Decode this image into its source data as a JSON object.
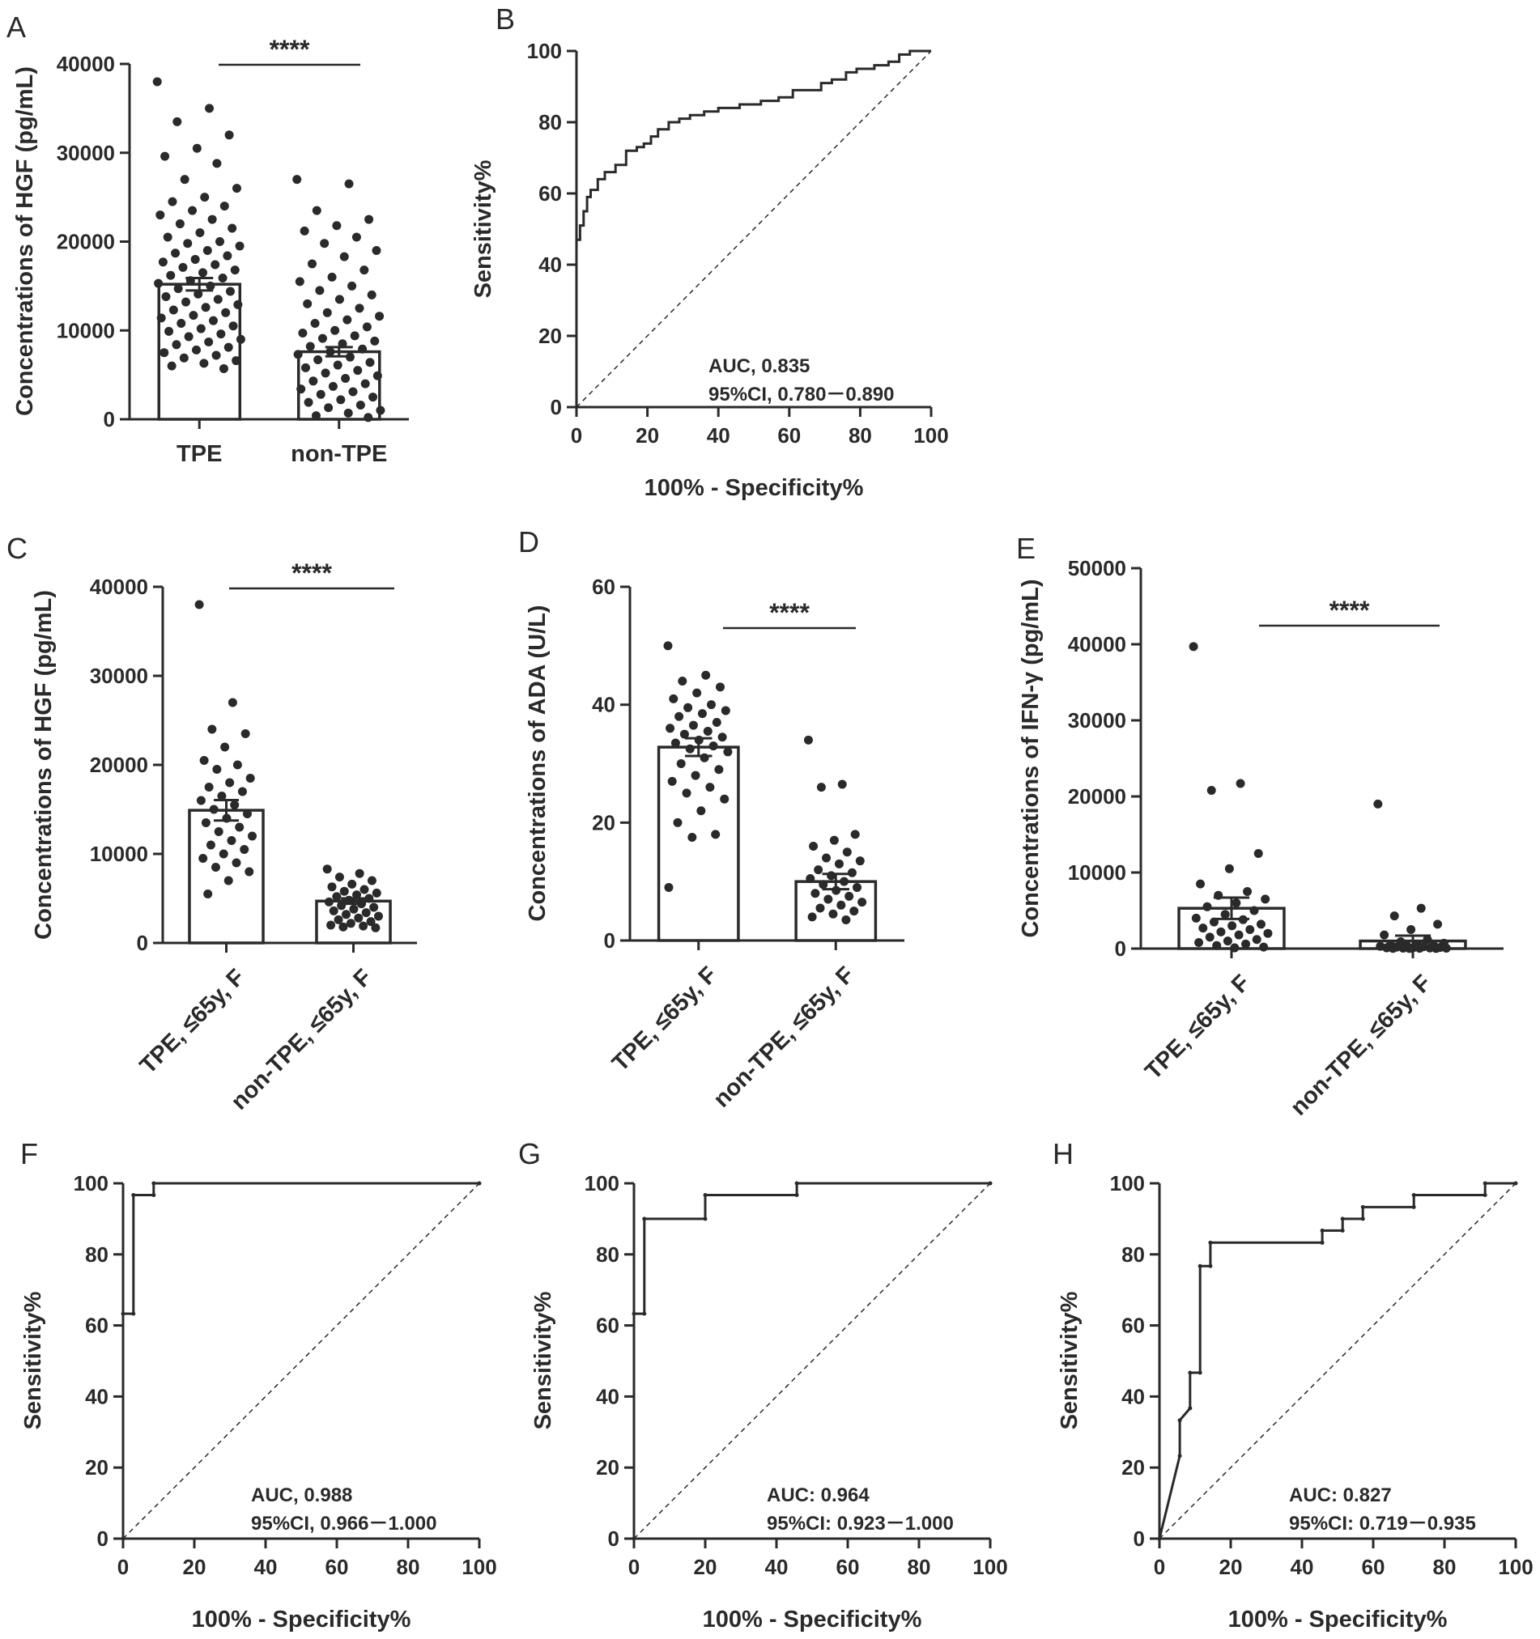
{
  "chart_data": [
    {
      "panel": "A",
      "type": "bar",
      "ylabel": "Concentrations of HGF (pg/mL)",
      "categories": [
        "TPE",
        "non-TPE"
      ],
      "means": [
        15200,
        7600
      ],
      "sem": [
        700,
        520
      ],
      "ylim": [
        0,
        40000
      ],
      "yticks": [
        0,
        10000,
        20000,
        30000,
        40000
      ],
      "significance": "****",
      "points": [
        [
          38000,
          35000,
          33500,
          32000,
          30500,
          29600,
          28800,
          27000,
          26000,
          25000,
          24500,
          24000,
          23500,
          23000,
          22500,
          22000,
          21500,
          21000,
          20500,
          20000,
          19800,
          19500,
          19000,
          18700,
          18400,
          18000,
          17700,
          17400,
          17100,
          16800,
          16500,
          16200,
          15900,
          15600,
          15300,
          15000,
          14700,
          14400,
          14100,
          13800,
          13500,
          13200,
          12900,
          12600,
          12300,
          12000,
          11700,
          11400,
          11100,
          10800,
          10500,
          10200,
          9900,
          9600,
          9300,
          9000,
          8700,
          8400,
          8100,
          7800,
          7500,
          7200,
          6900,
          6600,
          6300,
          6000,
          5700
        ],
        [
          27000,
          26500,
          23500,
          22500,
          21800,
          21200,
          20500,
          19800,
          19000,
          18300,
          17500,
          16800,
          16000,
          15500,
          15000,
          14500,
          14000,
          13500,
          13000,
          12500,
          12000,
          11600,
          11200,
          10800,
          10400,
          10000,
          9700,
          9400,
          9100,
          8800,
          8500,
          8200,
          7900,
          7600,
          7300,
          7000,
          6700,
          6400,
          6100,
          5800,
          5500,
          5200,
          4900,
          4600,
          4300,
          4000,
          3700,
          3400,
          3100,
          2800,
          2500,
          2200,
          1900,
          1600,
          1300,
          1000,
          700,
          400,
          200
        ]
      ]
    },
    {
      "panel": "B",
      "type": "line",
      "xlabel": "100% - Specificity%",
      "ylabel": "Sensitivity%",
      "xlim": [
        0,
        100
      ],
      "ylim": [
        0,
        100
      ],
      "xticks": [
        0,
        20,
        40,
        60,
        80,
        100
      ],
      "yticks": [
        0,
        20,
        40,
        60,
        80,
        100
      ],
      "x": [
        0,
        0,
        1,
        1,
        2,
        2,
        3,
        3,
        4,
        4,
        6,
        6,
        8,
        8,
        11,
        11,
        14,
        14,
        17,
        17,
        19,
        19,
        21,
        21,
        23,
        23,
        26,
        26,
        29,
        29,
        32,
        32,
        36,
        36,
        40,
        40,
        46,
        46,
        52,
        52,
        57,
        57,
        61,
        61,
        69,
        69,
        72,
        72,
        76,
        76,
        79,
        79,
        84,
        84,
        88,
        88,
        91,
        91,
        94,
        94,
        100
      ],
      "y": [
        44,
        47,
        47,
        51,
        51,
        55,
        55,
        59,
        59,
        61,
        61,
        64,
        64,
        66,
        66,
        68,
        68,
        72,
        72,
        73,
        73,
        74,
        74,
        76,
        76,
        78,
        78,
        80,
        80,
        81,
        81,
        82,
        82,
        83,
        83,
        84,
        84,
        85,
        85,
        86,
        86,
        87,
        87,
        89,
        89,
        91,
        91,
        92,
        92,
        94,
        94,
        95,
        95,
        96,
        96,
        97,
        97,
        99,
        99,
        100,
        100
      ],
      "annotation": [
        "AUC, 0.835",
        "95%CI, 0.780－0.890"
      ]
    },
    {
      "panel": "C",
      "type": "bar",
      "ylabel": "Concentrations of HGF (pg/mL)",
      "categories": [
        "TPE, ≤65y, F",
        "non-TPE, ≤65y, F"
      ],
      "means": [
        14900,
        4700
      ],
      "sem": [
        1150,
        300
      ],
      "ylim": [
        0,
        40000
      ],
      "yticks": [
        0,
        10000,
        20000,
        30000,
        40000
      ],
      "significance": "****",
      "points": [
        [
          38000,
          27000,
          24000,
          23500,
          22000,
          20500,
          20000,
          19500,
          18500,
          18000,
          17500,
          17000,
          16500,
          16000,
          15500,
          15000,
          14500,
          14000,
          13500,
          13000,
          12500,
          12000,
          11500,
          11000,
          10500,
          10000,
          9500,
          9000,
          8500,
          8000,
          7000,
          5500
        ],
        [
          8300,
          7800,
          7400,
          7000,
          6600,
          6300,
          6000,
          5800,
          5600,
          5400,
          5200,
          5000,
          4800,
          4600,
          4400,
          4200,
          4000,
          3800,
          3600,
          3400,
          3200,
          3000,
          2800,
          2600,
          2400,
          2200,
          2000,
          1900,
          1800,
          1700
        ]
      ]
    },
    {
      "panel": "D",
      "type": "bar",
      "ylabel": "Concentrations of ADA (U/L)",
      "categories": [
        "TPE, ≤65y, F",
        "non-TPE, ≤65y, F"
      ],
      "means": [
        32.8,
        10.0
      ],
      "sem": [
        1.5,
        1.3
      ],
      "ylim": [
        0,
        60
      ],
      "yticks": [
        0,
        20,
        40,
        60
      ],
      "significance": "****",
      "points": [
        [
          50,
          45,
          44,
          43,
          42,
          41,
          40,
          39.5,
          39,
          38.5,
          38,
          37,
          36.5,
          36,
          35.5,
          35,
          34.5,
          34,
          33.5,
          33,
          32.5,
          32,
          31,
          30,
          29,
          28,
          27,
          26,
          25,
          24,
          22,
          20,
          18,
          17.5,
          9
        ],
        [
          34,
          26.5,
          26,
          18,
          17,
          16,
          15,
          14,
          13.5,
          13,
          12,
          11.5,
          11,
          10.5,
          10,
          9.5,
          9,
          8.5,
          8,
          7.5,
          7,
          6.5,
          6,
          5.5,
          5,
          4.5,
          4,
          3.5
        ]
      ]
    },
    {
      "panel": "E",
      "type": "bar",
      "ylabel": "Concentrations of IFN-γ (pg/mL)",
      "categories": [
        "TPE, ≤65y, F",
        "non-TPE, ≤65y, F"
      ],
      "means": [
        5300,
        1000
      ],
      "sem": [
        1400,
        700
      ],
      "ylim": [
        0,
        50000
      ],
      "yticks": [
        0,
        10000,
        20000,
        30000,
        40000,
        50000
      ],
      "significance": "****",
      "points": [
        [
          39700,
          21700,
          20800,
          12500,
          10500,
          8500,
          7500,
          7000,
          6500,
          6000,
          5500,
          5000,
          4500,
          4000,
          3800,
          3500,
          3200,
          3000,
          2700,
          2500,
          2200,
          2000,
          1800,
          1500,
          1200,
          1000,
          800,
          600,
          400,
          200,
          100
        ],
        [
          19000,
          5300,
          4300,
          3200,
          2500,
          1800,
          1200,
          900,
          700,
          600,
          500,
          400,
          350,
          300,
          250,
          200,
          150,
          120,
          100,
          80,
          60,
          50,
          40,
          30,
          20,
          10
        ]
      ]
    },
    {
      "panel": "F",
      "type": "line",
      "xlabel": "100% - Specificity%",
      "ylabel": "Sensitivity%",
      "xlim": [
        0,
        100
      ],
      "ylim": [
        0,
        100
      ],
      "xticks": [
        0,
        20,
        40,
        60,
        80,
        100
      ],
      "yticks": [
        0,
        20,
        40,
        60,
        80,
        100
      ],
      "x": [
        0,
        0,
        2.9,
        2.9,
        8.6,
        8.6,
        100
      ],
      "y": [
        0,
        63.3,
        63.3,
        96.7,
        96.7,
        100,
        100
      ],
      "annotation": [
        "AUC, 0.988",
        "95%CI, 0.966－1.000"
      ]
    },
    {
      "panel": "G",
      "type": "line",
      "xlabel": "100% - Specificity%",
      "ylabel": "Sensitivity%",
      "xlim": [
        0,
        100
      ],
      "ylim": [
        0,
        100
      ],
      "xticks": [
        0,
        20,
        40,
        60,
        80,
        100
      ],
      "yticks": [
        0,
        20,
        40,
        60,
        80,
        100
      ],
      "x": [
        0,
        0,
        2.9,
        2.9,
        20,
        20,
        45.7,
        45.7,
        100
      ],
      "y": [
        0,
        63.3,
        63.3,
        90,
        90,
        96.7,
        96.7,
        100,
        100
      ],
      "annotation": [
        "AUC: 0.964",
        "95%CI: 0.923－1.000"
      ]
    },
    {
      "panel": "H",
      "type": "line",
      "xlabel": "100% - Specificity%",
      "ylabel": "Sensitivity%",
      "xlim": [
        0,
        100
      ],
      "ylim": [
        0,
        100
      ],
      "xticks": [
        0,
        20,
        40,
        60,
        80,
        100
      ],
      "yticks": [
        0,
        20,
        40,
        60,
        80,
        100
      ],
      "x": [
        0,
        5.7,
        5.7,
        8.6,
        8.6,
        11.4,
        11.4,
        14.3,
        14.3,
        45.7,
        45.7,
        51.4,
        51.4,
        57.1,
        57.1,
        71.4,
        71.4,
        91.4,
        91.4,
        100
      ],
      "y": [
        0,
        23.3,
        33.3,
        36.7,
        46.7,
        46.7,
        76.7,
        76.7,
        83.3,
        83.3,
        86.7,
        86.7,
        90,
        90,
        93.3,
        93.3,
        96.7,
        96.7,
        100,
        100
      ],
      "annotation": [
        "AUC: 0.827",
        "95%CI: 0.719－0.935"
      ]
    }
  ]
}
